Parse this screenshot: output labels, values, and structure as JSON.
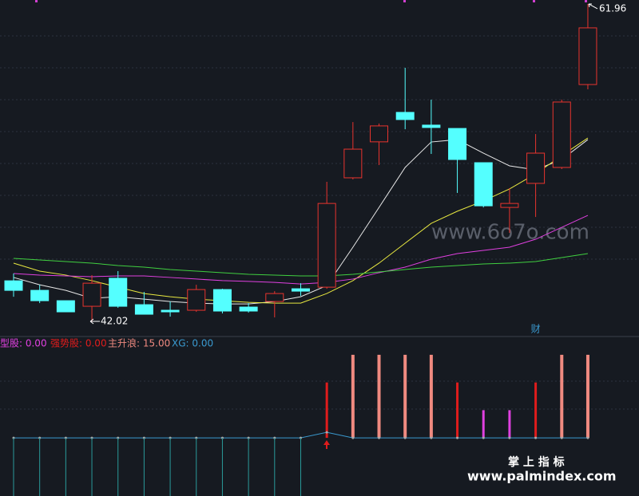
{
  "chart_data": [
    {
      "type": "candlestick",
      "open": [
        44.57,
        43.97,
        43.32,
        42.97,
        44.73,
        43.07,
        42.72,
        42.72,
        44.02,
        42.92,
        43.27,
        44.07,
        44.17,
        51.04,
        53.3,
        55.15,
        54.35,
        54.14,
        51.99,
        49.18,
        50.69,
        51.69,
        56.9
      ],
      "high": [
        45.03,
        44.32,
        43.32,
        44.93,
        45.18,
        43.87,
        43.27,
        44.32,
        44.07,
        43.17,
        43.92,
        44.42,
        50.79,
        54.54,
        54.45,
        57.95,
        55.95,
        54.14,
        51.99,
        50.39,
        53.79,
        55.95,
        61.96
      ],
      "low": [
        43.57,
        43.17,
        42.62,
        42.02,
        42.87,
        42.47,
        42.32,
        42.62,
        42.52,
        42.57,
        42.27,
        43.62,
        44.07,
        50.94,
        51.84,
        54.09,
        52.54,
        50.09,
        49.18,
        47.58,
        48.58,
        51.59,
        56.6
      ],
      "close": [
        43.97,
        43.32,
        42.62,
        44.42,
        42.97,
        42.47,
        42.62,
        44.02,
        42.67,
        42.67,
        43.77,
        43.92,
        49.43,
        52.84,
        54.3,
        54.7,
        54.2,
        52.19,
        49.28,
        49.43,
        52.59,
        55.8,
        60.46
      ],
      "up_color": "#e8342e",
      "down_color": "#54ffff",
      "series": [
        {
          "color": "#e8e8e8",
          "values": [
            44.78,
            44.32,
            43.97,
            43.47,
            43.57,
            43.42,
            43.27,
            43.17,
            43.12,
            43.12,
            43.27,
            43.57,
            44.27,
            46.68,
            49.18,
            51.69,
            53.29,
            53.44,
            52.59,
            51.79,
            51.54,
            52.19,
            53.44
          ]
        },
        {
          "color": "#e8e840",
          "values": [
            45.68,
            45.18,
            44.93,
            44.58,
            44.17,
            43.77,
            43.57,
            43.42,
            43.32,
            43.22,
            43.17,
            43.17,
            43.77,
            44.58,
            45.68,
            46.93,
            48.18,
            48.94,
            49.59,
            50.34,
            51.29,
            52.44,
            53.54
          ]
        },
        {
          "color": "#e040e0",
          "values": [
            45.03,
            44.93,
            44.88,
            44.83,
            44.88,
            44.88,
            44.78,
            44.68,
            44.58,
            44.53,
            44.47,
            44.37,
            44.47,
            44.68,
            45.08,
            45.43,
            45.93,
            46.28,
            46.48,
            46.68,
            47.18,
            47.93,
            48.68
          ]
        },
        {
          "color": "#40d040",
          "values": [
            45.98,
            45.88,
            45.78,
            45.68,
            45.53,
            45.43,
            45.28,
            45.18,
            45.08,
            44.98,
            44.93,
            44.88,
            44.88,
            44.98,
            45.13,
            45.28,
            45.43,
            45.53,
            45.63,
            45.68,
            45.78,
            46.03,
            46.28
          ]
        }
      ],
      "min_label": {
        "value": 42.02,
        "label": "42.02"
      },
      "max_label": {
        "value": 61.96,
        "label": "61.96"
      },
      "events": [
        {
          "label": "财",
          "index": 20
        }
      ],
      "ylim": [
        41.17,
        62.21
      ]
    },
    {
      "type": "indicator",
      "series": [
        {
          "name": "型股: 0.00",
          "color": "#e040e0",
          "style": "bar",
          "values": [
            0,
            0,
            0,
            0,
            0,
            0,
            0,
            0,
            0,
            0,
            0,
            0,
            0,
            0,
            0,
            0,
            0,
            0,
            5,
            5,
            0,
            0,
            0
          ]
        },
        {
          "name": "强势股: 0.00",
          "color": "#e01c1c",
          "style": "bar",
          "values": [
            0,
            0,
            0,
            0,
            0,
            0,
            0,
            0,
            0,
            0,
            0,
            0,
            10,
            0,
            0,
            0,
            0,
            10,
            0,
            0,
            10,
            0,
            0
          ]
        },
        {
          "name": "主升浪: 15.00",
          "color": "#f08a80",
          "style": "bar",
          "values": [
            0,
            0,
            0,
            0,
            0,
            0,
            0,
            0,
            0,
            0,
            0,
            0,
            0,
            15,
            15,
            15,
            15,
            0,
            0,
            0,
            0,
            15,
            15
          ]
        },
        {
          "name": "XG: 0.00",
          "color": "#3a9ad0",
          "style": "line",
          "values": [
            0,
            0,
            0,
            0,
            0,
            0,
            0,
            0,
            0,
            0,
            0,
            0,
            1,
            0,
            0,
            0,
            0,
            0,
            0,
            0,
            0,
            0,
            0
          ]
        },
        {
          "color": "#2a9a9a",
          "style": "stick",
          "values": [
            -10.5,
            -10.5,
            -10.5,
            -10.5,
            -10.5,
            -10.5,
            -10.5,
            -10.5,
            -10.5,
            -10.5,
            -10.5,
            -10.5,
            0,
            0,
            0,
            0,
            0,
            0,
            0,
            0,
            0,
            0,
            0
          ]
        }
      ],
      "ylim": [
        -10.5,
        18.3
      ]
    }
  ],
  "watermark": "www.6o7o.com",
  "brand": {
    "title": "掌 上 指 标",
    "url": "www.palmindex.com"
  }
}
